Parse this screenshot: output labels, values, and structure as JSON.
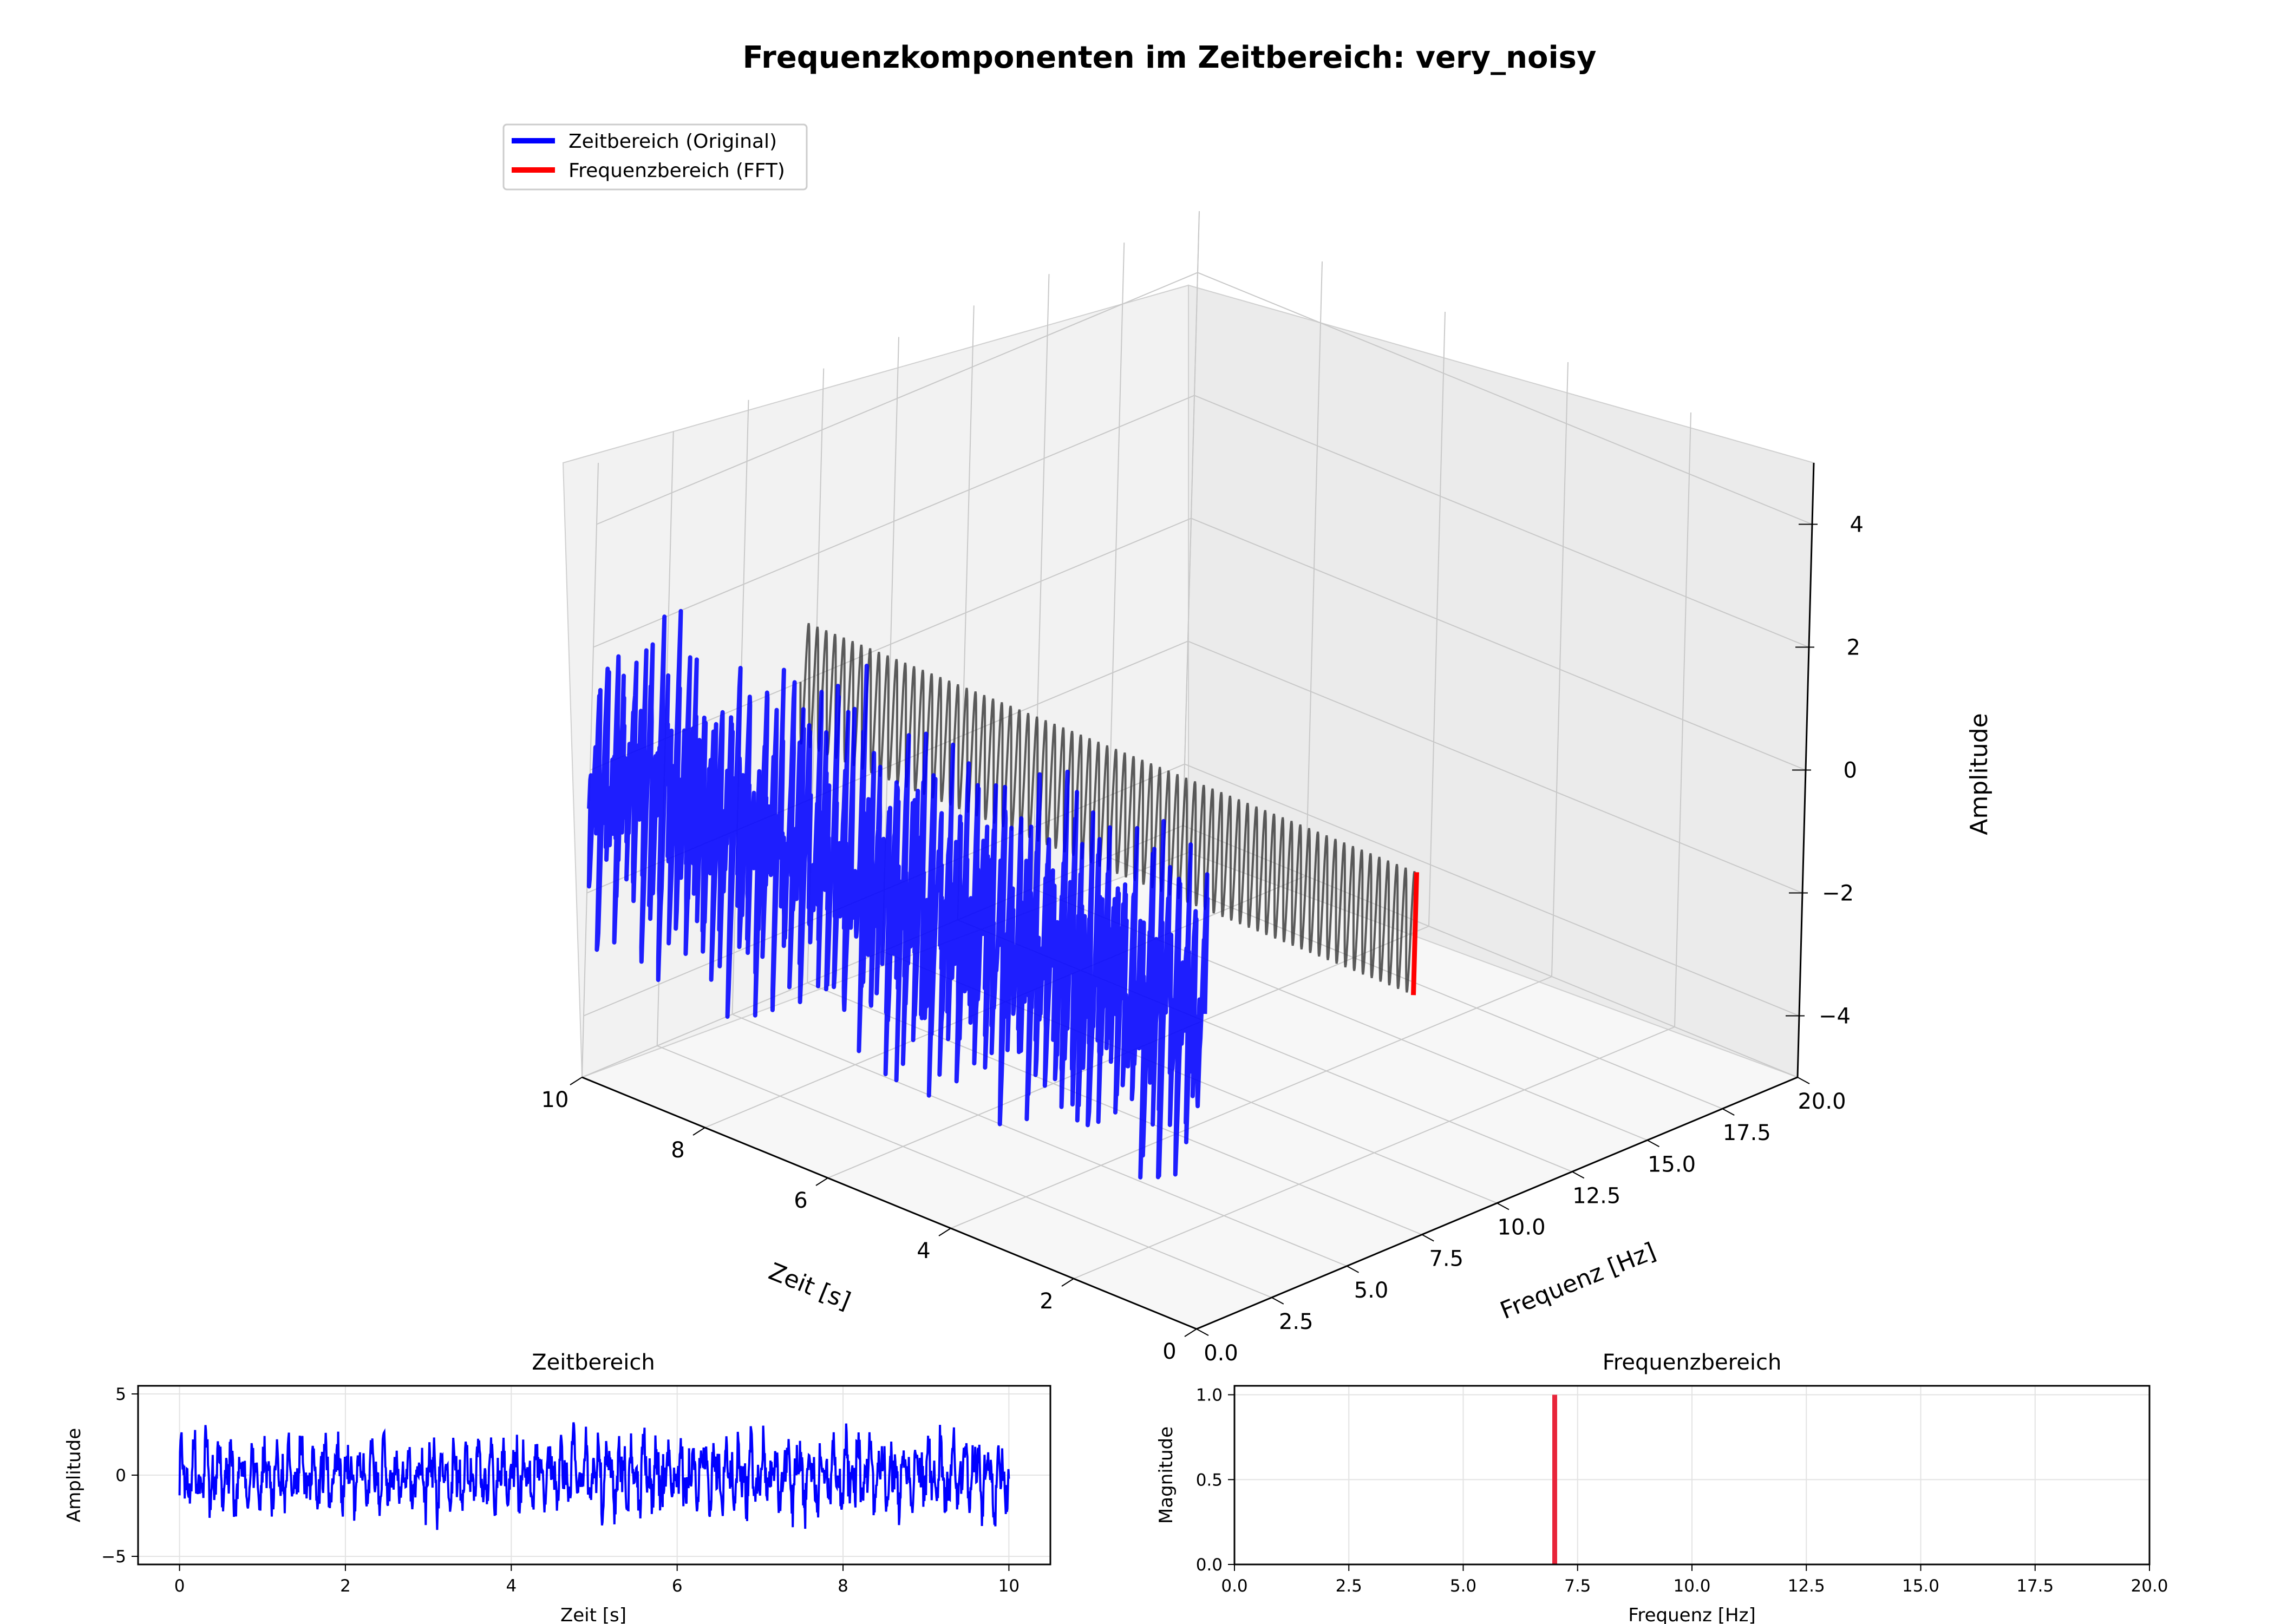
{
  "title": "Frequenzkomponenten im Zeitbereich: very_noisy",
  "legend": {
    "placement": "upper-left",
    "items": [
      {
        "label": "Zeitbereich (Original)",
        "color": "#0000ff"
      },
      {
        "label": "Frequenzbereich (FFT)",
        "color": "#ff0000"
      }
    ]
  },
  "chart_data": [
    {
      "type": "line",
      "projection": "3d",
      "title": "Frequenzkomponenten im Zeitbereich: very_noisy",
      "xlabel": "Zeit [s]",
      "ylabel": "Frequenz [Hz]",
      "zlabel": "Amplitude",
      "xlim": [
        0,
        10
      ],
      "ylim": [
        0,
        20
      ],
      "zlim": [
        -5,
        5
      ],
      "x_ticks": [
        "0",
        "2",
        "4",
        "6",
        "8",
        "10"
      ],
      "y_ticks": [
        "0.0",
        "2.5",
        "5.0",
        "7.5",
        "10.0",
        "12.5",
        "15.0",
        "17.5",
        "20.0"
      ],
      "z_ticks": [
        "−4",
        "−2",
        "0",
        "2",
        "4"
      ],
      "grid": true,
      "series": [
        {
          "name": "Zeitbereich (Original)",
          "color": "#0000ff",
          "frequency": 0,
          "amplitude_range": [
            -5,
            5
          ]
        },
        {
          "name": "Frequenzbereich (FFT)",
          "color": "#ff0000",
          "frequency": 7,
          "amplitude_range": [
            -1,
            1
          ]
        },
        {
          "color": "#333333",
          "frequency": 7,
          "amplitude_range": [
            -1,
            1
          ]
        }
      ]
    },
    {
      "type": "line",
      "title": "Zeitbereich",
      "xlabel": "Zeit [s]",
      "ylabel": "Amplitude",
      "xlim": [
        -0.5,
        10.5
      ],
      "ylim": [
        -5.5,
        5.5
      ],
      "x_ticks": [
        "0",
        "2",
        "4",
        "6",
        "8",
        "10"
      ],
      "y_ticks": [
        "−5",
        "0",
        "5"
      ],
      "grid": true,
      "series": [
        {
          "color": "#0000ff",
          "x_range": [
            0,
            10
          ],
          "amplitude_range": [
            -5,
            5
          ]
        }
      ]
    },
    {
      "type": "bar",
      "title": "Frequenzbereich",
      "xlabel": "Frequenz [Hz]",
      "ylabel": "Magnitude",
      "xlim": [
        0,
        20
      ],
      "ylim": [
        0,
        1
      ],
      "x_ticks": [
        "0.0",
        "2.5",
        "5.0",
        "7.5",
        "10.0",
        "12.5",
        "15.0",
        "17.5",
        "20.0"
      ],
      "y_ticks": [
        "0.0",
        "0.5",
        "1.0"
      ],
      "grid": true,
      "x": [
        7
      ],
      "values": [
        1.0
      ],
      "color": "#e8253a"
    }
  ]
}
